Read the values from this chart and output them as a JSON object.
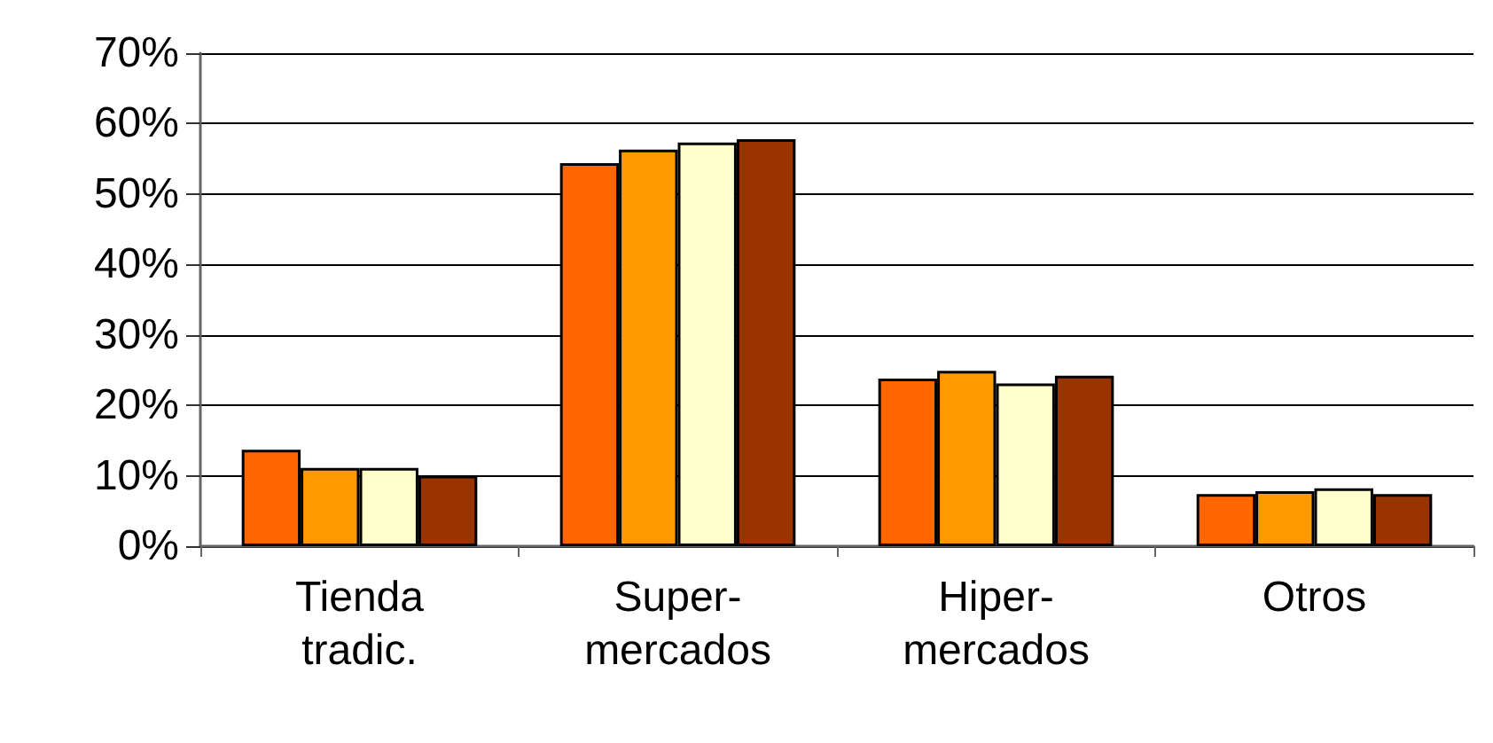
{
  "chart_data": {
    "type": "bar",
    "categories": [
      "Tienda\ntradic.",
      "Super-\nmercados",
      "Hiper-\nmercados",
      "Otros"
    ],
    "series": [
      {
        "color": "#ff6600",
        "values": [
          13.7,
          54.4,
          23.8,
          7.4
        ]
      },
      {
        "color": "#ff9900",
        "values": [
          11.1,
          56.3,
          24.9,
          7.8
        ]
      },
      {
        "color": "#ffffcc",
        "values": [
          11.1,
          57.3,
          23.1,
          8.2
        ]
      },
      {
        "color": "#993300",
        "values": [
          10.0,
          57.8,
          24.2,
          7.4
        ]
      }
    ],
    "ylim": [
      0,
      70
    ],
    "yticks": [
      {
        "value": 0,
        "label": "0%"
      },
      {
        "value": 10,
        "label": "10%"
      },
      {
        "value": 20,
        "label": "20%"
      },
      {
        "value": 30,
        "label": "30%"
      },
      {
        "value": 40,
        "label": "40%"
      },
      {
        "value": 50,
        "label": "50%"
      },
      {
        "value": 60,
        "label": "60%"
      },
      {
        "value": 70,
        "label": "70%"
      }
    ],
    "grid": "y"
  }
}
